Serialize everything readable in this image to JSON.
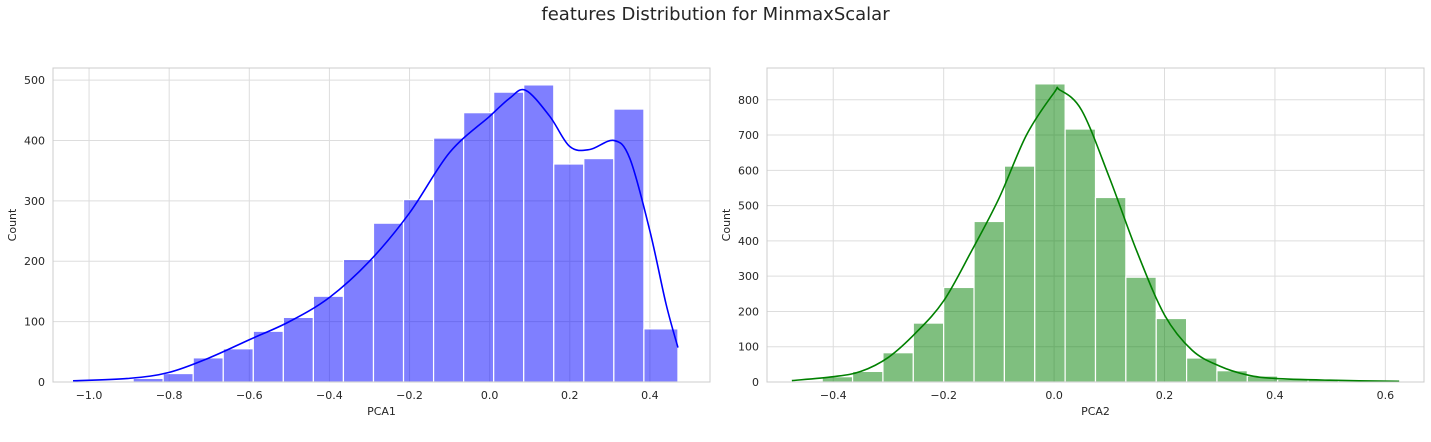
{
  "figure": {
    "suptitle": "features Distribution for MinmaxScalar"
  },
  "chart_data": [
    {
      "type": "bar",
      "kind": "histogram",
      "xlabel": "PCA1",
      "ylabel": "Count",
      "xlim": [
        -1.09,
        0.55
      ],
      "ylim": [
        0,
        520
      ],
      "grid": true,
      "xticks": [
        -1.0,
        -0.8,
        -0.6,
        -0.4,
        -0.2,
        0.0,
        0.2,
        0.4
      ],
      "xtick_labels": [
        "−1.0",
        "−0.8",
        "−0.6",
        "−0.4",
        "−0.2",
        "0.0",
        "0.2",
        "0.4"
      ],
      "yticks": [
        0,
        100,
        200,
        300,
        400,
        500
      ],
      "ytick_labels": [
        "0",
        "100",
        "200",
        "300",
        "400",
        "500"
      ],
      "color": "#0000ff",
      "bin_edges": [
        -1.04,
        -0.965,
        -0.89,
        -0.815,
        -0.74,
        -0.665,
        -0.59,
        -0.515,
        -0.44,
        -0.365,
        -0.29,
        -0.215,
        -0.14,
        -0.065,
        0.01,
        0.085,
        0.16,
        0.235,
        0.31,
        0.385,
        0.47
      ],
      "counts": [
        1,
        2,
        6,
        14,
        40,
        55,
        84,
        107,
        142,
        203,
        263,
        302,
        404,
        446,
        480,
        492,
        361,
        370,
        452,
        88
      ],
      "kde": {
        "x": [
          -1.04,
          -0.9,
          -0.8,
          -0.7,
          -0.6,
          -0.5,
          -0.4,
          -0.3,
          -0.2,
          -0.1,
          0.0,
          0.05,
          0.09,
          0.15,
          0.2,
          0.25,
          0.31,
          0.35,
          0.4,
          0.44,
          0.47
        ],
        "y": [
          2,
          6,
          16,
          40,
          70,
          100,
          140,
          200,
          280,
          380,
          440,
          470,
          483,
          440,
          390,
          385,
          400,
          370,
          250,
          130,
          57
        ]
      }
    },
    {
      "type": "bar",
      "kind": "histogram",
      "xlabel": "PCA2",
      "ylabel": "Count",
      "xlim": [
        -0.52,
        0.67
      ],
      "ylim": [
        0,
        890
      ],
      "grid": true,
      "xticks": [
        -0.4,
        -0.2,
        0.0,
        0.2,
        0.4,
        0.6
      ],
      "xtick_labels": [
        "−0.4",
        "−0.2",
        "0.0",
        "0.2",
        "0.4",
        "0.6"
      ],
      "yticks": [
        0,
        100,
        200,
        300,
        400,
        500,
        600,
        700,
        800
      ],
      "ytick_labels": [
        "0",
        "100",
        "200",
        "300",
        "400",
        "500",
        "600",
        "700",
        "800"
      ],
      "color": "#008000",
      "bin_edges": [
        -0.475,
        -0.42,
        -0.365,
        -0.31,
        -0.255,
        -0.2,
        -0.145,
        -0.09,
        -0.035,
        0.02,
        0.075,
        0.13,
        0.185,
        0.24,
        0.295,
        0.35,
        0.405,
        0.46,
        0.515,
        0.57,
        0.625
      ],
      "counts": [
        3,
        15,
        30,
        83,
        167,
        268,
        455,
        612,
        845,
        717,
        523,
        297,
        180,
        68,
        32,
        17,
        7,
        6,
        4,
        3
      ],
      "kde": {
        "x": [
          -0.475,
          -0.4,
          -0.35,
          -0.3,
          -0.25,
          -0.2,
          -0.15,
          -0.1,
          -0.05,
          0.0,
          0.01,
          0.05,
          0.1,
          0.15,
          0.2,
          0.25,
          0.3,
          0.35,
          0.4,
          0.5,
          0.625
        ],
        "y": [
          4,
          15,
          30,
          70,
          140,
          230,
          370,
          520,
          700,
          820,
          828,
          770,
          580,
          370,
          190,
          90,
          45,
          20,
          10,
          5,
          2
        ]
      }
    }
  ]
}
